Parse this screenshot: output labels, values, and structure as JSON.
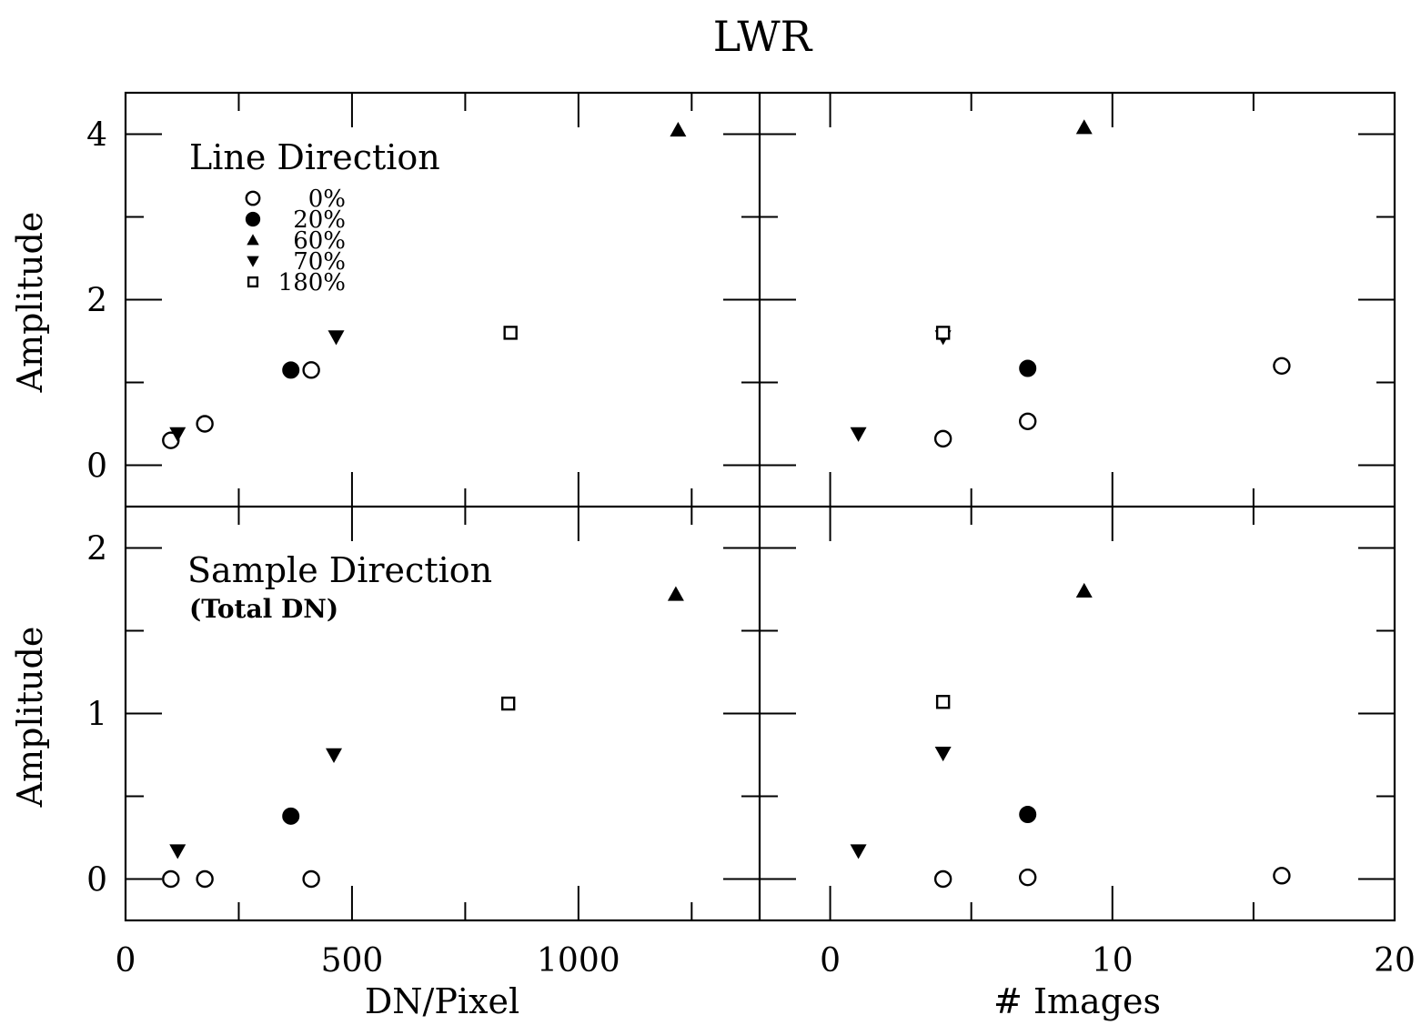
{
  "figure": {
    "title": "LWR",
    "x_labels": {
      "left": "DN/Pixel",
      "right": "# Images"
    },
    "y_label": "Amplitude",
    "top_panel_title": "Line Direction",
    "bottom_panel_title": "Sample Direction",
    "bottom_panel_subtitle": "(Total DN)"
  },
  "legend": [
    {
      "label": "0%",
      "marker": "open-circle"
    },
    {
      "label": "20%",
      "marker": "filled-circle"
    },
    {
      "label": "60%",
      "marker": "filled-triangle-up"
    },
    {
      "label": "70%",
      "marker": "filled-triangle-down"
    },
    {
      "label": "180%",
      "marker": "open-square"
    }
  ],
  "chart_data": [
    {
      "type": "scatter",
      "panel": "top-left",
      "title": "Line Direction",
      "xlabel": "",
      "ylabel": "Amplitude",
      "xlim": [
        0,
        1400
      ],
      "ylim": [
        -0.5,
        4.5
      ],
      "xticks": [],
      "yticks": [
        0,
        2,
        4
      ],
      "series": [
        {
          "name": "0%",
          "marker": "open-circle",
          "points": [
            [
              100,
              0.3
            ],
            [
              175,
              0.5
            ],
            [
              410,
              1.15
            ]
          ]
        },
        {
          "name": "20%",
          "marker": "filled-circle",
          "points": [
            [
              365,
              1.15
            ]
          ]
        },
        {
          "name": "60%",
          "marker": "filled-triangle-up",
          "points": [
            [
              1220,
              4.05
            ]
          ]
        },
        {
          "name": "70%",
          "marker": "filled-triangle-down",
          "points": [
            [
              115,
              0.38
            ],
            [
              465,
              1.55
            ]
          ]
        },
        {
          "name": "180%",
          "marker": "open-square",
          "points": [
            [
              850,
              1.6
            ]
          ]
        }
      ]
    },
    {
      "type": "scatter",
      "panel": "top-right",
      "xlabel": "",
      "ylabel": "",
      "xlim": [
        -2.5,
        20
      ],
      "ylim": [
        -0.5,
        4.5
      ],
      "xticks": [],
      "yticks": [],
      "series": [
        {
          "name": "0%",
          "marker": "open-circle",
          "points": [
            [
              4,
              0.32
            ],
            [
              7,
              0.53
            ],
            [
              16,
              1.2
            ]
          ]
        },
        {
          "name": "20%",
          "marker": "filled-circle",
          "points": [
            [
              7,
              1.17
            ]
          ]
        },
        {
          "name": "60%",
          "marker": "filled-triangle-up",
          "points": [
            [
              9,
              4.08
            ]
          ]
        },
        {
          "name": "70%",
          "marker": "filled-triangle-down",
          "points": [
            [
              1,
              0.38
            ],
            [
              4,
              1.55
            ]
          ]
        },
        {
          "name": "180%",
          "marker": "open-square",
          "points": [
            [
              4,
              1.6
            ]
          ]
        }
      ]
    },
    {
      "type": "scatter",
      "panel": "bottom-left",
      "title": "Sample Direction",
      "subtitle": "(Total DN)",
      "xlabel": "DN/Pixel",
      "ylabel": "Amplitude",
      "xlim": [
        0,
        1400
      ],
      "ylim": [
        -0.25,
        2.25
      ],
      "xticks": [
        0,
        500,
        1000
      ],
      "yticks": [
        0,
        1,
        2
      ],
      "series": [
        {
          "name": "0%",
          "marker": "open-circle",
          "points": [
            [
              100,
              0.0
            ],
            [
              175,
              0.0
            ],
            [
              410,
              0.0
            ]
          ]
        },
        {
          "name": "20%",
          "marker": "filled-circle",
          "points": [
            [
              365,
              0.38
            ]
          ]
        },
        {
          "name": "60%",
          "marker": "filled-triangle-up",
          "points": [
            [
              1215,
              1.72
            ]
          ]
        },
        {
          "name": "70%",
          "marker": "filled-triangle-down",
          "points": [
            [
              115,
              0.17
            ],
            [
              460,
              0.75
            ]
          ]
        },
        {
          "name": "180%",
          "marker": "open-square",
          "points": [
            [
              845,
              1.06
            ]
          ]
        }
      ]
    },
    {
      "type": "scatter",
      "panel": "bottom-right",
      "xlabel": "# Images",
      "ylabel": "",
      "xlim": [
        -2.5,
        20
      ],
      "ylim": [
        -0.25,
        2.25
      ],
      "xticks": [
        0,
        10,
        20
      ],
      "yticks": [],
      "series": [
        {
          "name": "0%",
          "marker": "open-circle",
          "points": [
            [
              4,
              0.0
            ],
            [
              7,
              0.01
            ],
            [
              16,
              0.02
            ]
          ]
        },
        {
          "name": "20%",
          "marker": "filled-circle",
          "points": [
            [
              7,
              0.39
            ]
          ]
        },
        {
          "name": "60%",
          "marker": "filled-triangle-up",
          "points": [
            [
              9,
              1.74
            ]
          ]
        },
        {
          "name": "70%",
          "marker": "filled-triangle-down",
          "points": [
            [
              1,
              0.17
            ],
            [
              4,
              0.76
            ]
          ]
        },
        {
          "name": "180%",
          "marker": "open-square",
          "points": [
            [
              4,
              1.07
            ]
          ]
        }
      ]
    }
  ]
}
